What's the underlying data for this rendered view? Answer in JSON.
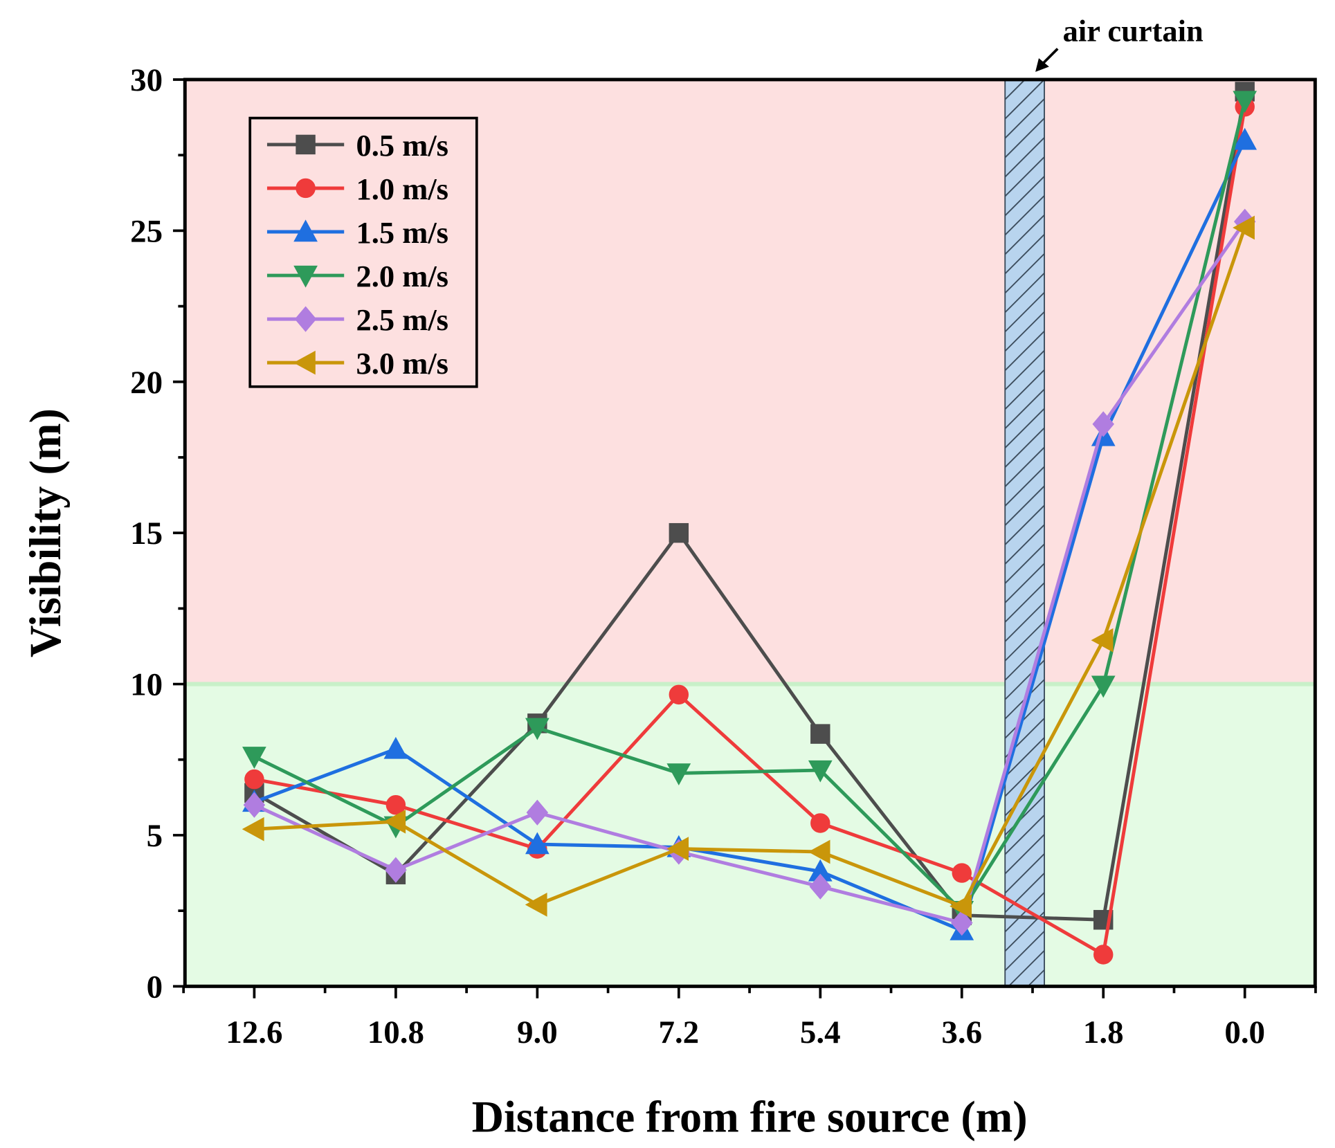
{
  "chart_data": {
    "type": "line",
    "title": "",
    "xlabel": "Distance from fire source (m)",
    "ylabel": "Visibility (m)",
    "categories": [
      "12.6",
      "10.8",
      "9.0",
      "7.2",
      "5.4",
      "3.6",
      "1.8",
      "0.0"
    ],
    "x": [
      12.6,
      10.8,
      9.0,
      7.2,
      5.4,
      3.6,
      1.8,
      0.0
    ],
    "xlim": [
      13.5,
      -0.9
    ],
    "ylim": [
      0,
      30
    ],
    "yticks": [
      0,
      5,
      10,
      15,
      20,
      25,
      30
    ],
    "ytick_labels": [
      "0",
      "5",
      "10",
      "15",
      "20",
      "25",
      "30"
    ],
    "grid": false,
    "legend_position": "top-left",
    "regions": [
      {
        "from": 10,
        "to": 30,
        "color": "#fde0e0"
      },
      {
        "from": 0,
        "to": 10,
        "color": "#e4fbe4"
      }
    ],
    "threshold_line": {
      "y": 10,
      "color": "#c8f0c8"
    },
    "air_curtain": {
      "label": "air curtain",
      "x_from": 3.05,
      "x_to": 2.55,
      "color": "#b8d4ee"
    },
    "series": [
      {
        "name": "0.5 m/s",
        "color": "#4d4d4d",
        "marker": "square",
        "values": [
          6.4,
          3.7,
          8.7,
          15.0,
          8.35,
          2.35,
          2.2,
          29.6
        ]
      },
      {
        "name": "1.0 m/s",
        "color": "#ef3b3b",
        "marker": "circle",
        "values": [
          6.85,
          6.0,
          4.55,
          9.65,
          5.4,
          3.75,
          1.05,
          29.1
        ]
      },
      {
        "name": "1.5 m/s",
        "color": "#1f6fe0",
        "marker": "triangle-up",
        "values": [
          6.1,
          7.85,
          4.7,
          4.6,
          3.8,
          1.85,
          18.2,
          28.0
        ]
      },
      {
        "name": "2.0 m/s",
        "color": "#2e9a5a",
        "marker": "triangle-down",
        "values": [
          7.6,
          5.3,
          8.55,
          7.05,
          7.15,
          2.5,
          9.95,
          29.3
        ]
      },
      {
        "name": "2.5 m/s",
        "color": "#b07de0",
        "marker": "diamond",
        "values": [
          6.0,
          3.85,
          5.75,
          4.45,
          3.3,
          2.1,
          18.6,
          25.3
        ]
      },
      {
        "name": "3.0 m/s",
        "color": "#c9960a",
        "marker": "triangle-left",
        "values": [
          5.2,
          5.45,
          2.7,
          4.55,
          4.45,
          2.65,
          11.45,
          25.1
        ]
      }
    ]
  }
}
